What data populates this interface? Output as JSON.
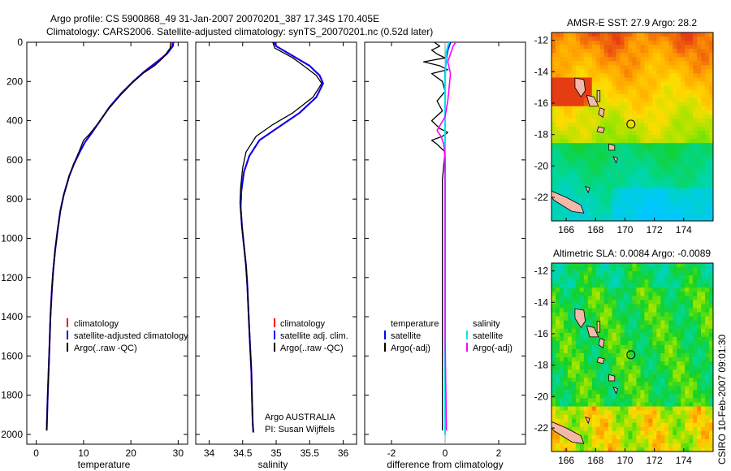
{
  "figure": {
    "title_line1": "Argo profile: CS 5900868_49 31-Jan-2007 20070201_387 17.34S 170.405E",
    "title_line2": "Climatology: CARS2006. Satellite-adjusted climatology: synTS_20070201.nc (0.52d later)",
    "side_caption": "CSIRO 10-Feb-2007 09:01:30",
    "argo_label": "Argo AUSTRALIA",
    "pi_label": "PI: Susan Wijffels"
  },
  "colors": {
    "climatology": "#ff0000",
    "satellite": "#0000ff",
    "argo": "#000000",
    "salinity_satellite": "#00e5ee",
    "salinity_argo": "#ff00ff"
  },
  "chart_data": [
    {
      "type": "line",
      "name": "temperature-profile",
      "xlabel": "temperature",
      "ylabel": "",
      "xlim": [
        -2,
        32
      ],
      "ylim": [
        2050,
        0
      ],
      "xticks": [
        0,
        10,
        20,
        30
      ],
      "yticks": [
        0,
        200,
        400,
        600,
        800,
        1000,
        1200,
        1400,
        1600,
        1800,
        2000
      ],
      "legend": [
        "climatology",
        "satellite-adjusted climatology",
        "Argo(..raw -QC)"
      ],
      "series": [
        {
          "name": "climatology",
          "x": [
            28.8,
            28.7,
            27.5,
            25.5,
            22.8,
            20.5,
            18.0,
            15.5,
            13.5,
            11.8,
            10.3,
            9.2,
            8.0,
            7.0,
            5.8,
            5.1,
            4.5,
            4.0,
            3.6,
            3.3,
            3.0,
            2.8,
            2.6,
            2.4,
            2.2
          ],
          "y": [
            0,
            20,
            60,
            100,
            150,
            200,
            260,
            330,
            400,
            460,
            510,
            560,
            620,
            680,
            780,
            860,
            960,
            1060,
            1160,
            1260,
            1400,
            1540,
            1680,
            1820,
            1980
          ]
        },
        {
          "name": "satellite",
          "x": [
            29.0,
            28.9,
            27.6,
            25.6,
            22.9,
            20.5,
            18.0,
            15.5,
            13.5,
            11.8,
            10.3,
            9.2,
            8.0,
            7.0,
            5.8,
            5.1,
            4.5,
            4.0,
            3.6,
            3.3,
            3.0,
            2.8,
            2.6,
            2.4,
            2.2
          ],
          "y": [
            0,
            20,
            60,
            100,
            150,
            200,
            260,
            330,
            400,
            460,
            510,
            560,
            620,
            680,
            780,
            860,
            960,
            1060,
            1160,
            1260,
            1400,
            1540,
            1680,
            1820,
            1980
          ]
        },
        {
          "name": "argo",
          "x": [
            28.4,
            28.3,
            26.8,
            25.0,
            22.5,
            20.2,
            17.8,
            15.3,
            13.2,
            11.2,
            10.0,
            9.0,
            7.9,
            7.0,
            5.8,
            5.1,
            4.5,
            4.0,
            3.6,
            3.3,
            3.0,
            2.8,
            2.6,
            2.4,
            2.2
          ],
          "y": [
            0,
            30,
            80,
            120,
            160,
            210,
            270,
            340,
            410,
            470,
            500,
            560,
            620,
            680,
            780,
            860,
            960,
            1060,
            1160,
            1260,
            1400,
            1540,
            1680,
            1820,
            1980
          ]
        }
      ]
    },
    {
      "type": "line",
      "name": "salinity-profile",
      "xlabel": "salinity",
      "xlim": [
        33.8,
        36.2
      ],
      "ylim": [
        2050,
        0
      ],
      "xticks": [
        34,
        34.5,
        35,
        35.5,
        36
      ],
      "xticklabels": [
        "34",
        "34.5",
        "35",
        "35.5",
        "36"
      ],
      "legend": [
        "climatology",
        "satellite adj. clim.",
        "Argo(..raw -QC)"
      ],
      "series": [
        {
          "name": "climatology",
          "x": [
            34.97,
            35.0,
            35.2,
            35.5,
            35.65,
            35.7,
            35.6,
            35.35,
            35.05,
            34.75,
            34.6,
            34.52,
            34.48,
            34.47,
            34.49,
            34.52,
            34.55,
            34.57,
            34.59,
            34.61,
            34.63,
            34.64,
            34.65,
            34.66
          ],
          "y": [
            0,
            20,
            60,
            120,
            170,
            210,
            280,
            360,
            430,
            500,
            580,
            660,
            760,
            840,
            940,
            1040,
            1140,
            1240,
            1400,
            1540,
            1680,
            1820,
            1940,
            1990
          ]
        },
        {
          "name": "satellite",
          "x": [
            34.97,
            35.0,
            35.2,
            35.5,
            35.65,
            35.7,
            35.6,
            35.35,
            35.05,
            34.75,
            34.6,
            34.52,
            34.48,
            34.47,
            34.49,
            34.52,
            34.55,
            34.57,
            34.59,
            34.61,
            34.63,
            34.64,
            34.65,
            34.66
          ],
          "y": [
            0,
            20,
            60,
            120,
            170,
            210,
            280,
            360,
            430,
            500,
            580,
            660,
            760,
            840,
            940,
            1040,
            1140,
            1240,
            1400,
            1540,
            1680,
            1820,
            1940,
            1990
          ]
        },
        {
          "name": "argo",
          "x": [
            34.95,
            34.98,
            35.25,
            35.45,
            35.6,
            35.68,
            35.55,
            35.25,
            34.95,
            34.7,
            34.55,
            34.5,
            34.47,
            34.46,
            34.49,
            34.52,
            34.55,
            34.57,
            34.59,
            34.61,
            34.63,
            34.64,
            34.65,
            34.66
          ],
          "y": [
            0,
            30,
            80,
            130,
            170,
            210,
            280,
            360,
            420,
            480,
            560,
            640,
            740,
            820,
            940,
            1040,
            1140,
            1240,
            1400,
            1540,
            1680,
            1820,
            1940,
            1990
          ]
        }
      ]
    },
    {
      "type": "line",
      "name": "difference-profile",
      "xlabel": "difference from climatology",
      "xlim": [
        -3,
        3
      ],
      "ylim": [
        2050,
        0
      ],
      "xticks": [
        -2,
        0,
        2
      ],
      "legend_temperature_header": "temperature",
      "legend_salinity_header": "salinity",
      "legend_temperature": [
        "satellite",
        "Argo(-adj)"
      ],
      "legend_salinity": [
        "satellite",
        "Argo(-adj)"
      ],
      "series": [
        {
          "name": "temperature-satellite",
          "x": [
            0.2,
            0.15,
            0.1,
            0.05,
            0.0,
            0.0,
            0.0
          ],
          "y": [
            0,
            20,
            40,
            80,
            150,
            500,
            2000
          ]
        },
        {
          "name": "temperature-argo",
          "x": [
            -0.4,
            -0.2,
            -0.5,
            -0.3,
            0.0,
            -0.8,
            -0.2,
            0.1,
            -0.5,
            -0.1,
            0.0,
            -0.3,
            -0.1,
            -0.5,
            -0.2,
            0.1,
            -0.1,
            -0.5,
            -0.3,
            0.0,
            -0.1,
            -0.1,
            -0.1,
            -0.1
          ],
          "y": [
            0,
            20,
            40,
            60,
            80,
            100,
            120,
            140,
            160,
            200,
            250,
            300,
            350,
            400,
            440,
            460,
            480,
            500,
            520,
            560,
            700,
            1000,
            1500,
            1980
          ]
        },
        {
          "name": "salinity-satellite",
          "x": [
            0.15,
            0.1,
            0.05,
            0.02,
            0.0,
            0.0,
            0.0,
            0.0
          ],
          "y": [
            0,
            20,
            50,
            100,
            200,
            600,
            1200,
            2000
          ]
        },
        {
          "name": "salinity-argo",
          "x": [
            0.4,
            0.3,
            0.2,
            0.1,
            0.2,
            0.15,
            0.1,
            0.0,
            -0.3,
            -0.15,
            -0.05,
            0.0,
            0.0,
            0.0,
            0.05
          ],
          "y": [
            0,
            20,
            60,
            100,
            160,
            230,
            300,
            380,
            450,
            480,
            520,
            600,
            800,
            1500,
            1980
          ]
        }
      ]
    },
    {
      "type": "heatmap",
      "name": "sst-map",
      "title": "AMSR-E SST: 27.9 Argo: 28.2",
      "xlim": [
        165,
        176
      ],
      "ylim": [
        -23.5,
        -11.5
      ],
      "xticks": [
        166,
        168,
        170,
        172,
        174
      ],
      "yticks": [
        -12,
        -14,
        -16,
        -18,
        -20,
        -22
      ],
      "float_position": {
        "lon": 170.405,
        "lat": -17.34
      }
    },
    {
      "type": "heatmap",
      "name": "sla-map",
      "title": "Altimetric SLA: 0.0084 Argo: -0.0089",
      "xlim": [
        165,
        176
      ],
      "ylim": [
        -23.5,
        -11.5
      ],
      "xticks": [
        166,
        168,
        170,
        172,
        174
      ],
      "yticks": [
        -12,
        -14,
        -16,
        -18,
        -20,
        -22
      ],
      "float_position": {
        "lon": 170.405,
        "lat": -17.34
      }
    }
  ]
}
